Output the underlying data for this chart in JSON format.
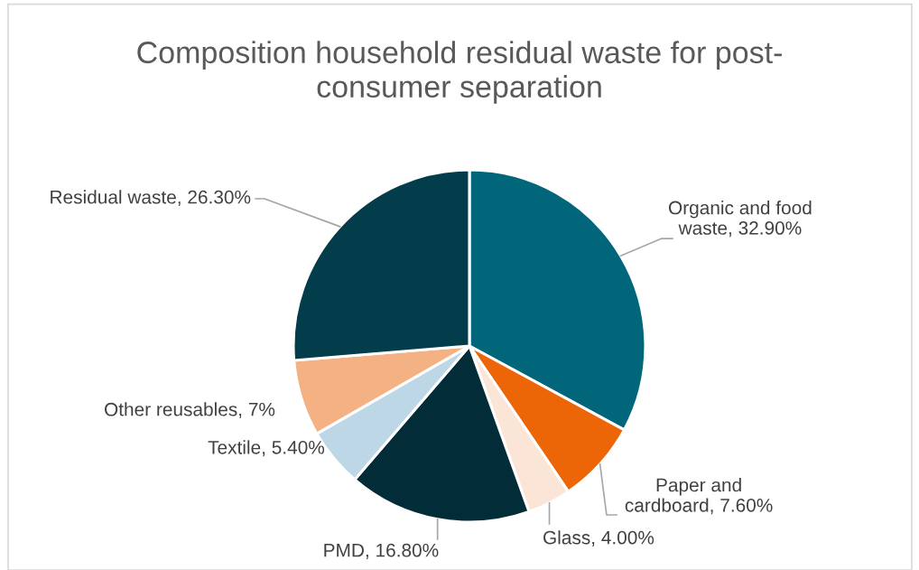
{
  "chart_data": {
    "type": "pie",
    "title": "Composition household residual waste for post-consumer separation",
    "categories": [
      "Organic and food waste",
      "Paper and cardboard",
      "Glass",
      "PMD",
      "Textile",
      "Other reusables",
      "Residual waste"
    ],
    "values": [
      32.9,
      7.6,
      4.0,
      16.8,
      5.4,
      7,
      26.3
    ],
    "value_labels": [
      "32.90%",
      "7.60%",
      "4.00%",
      "16.80%",
      "5.40%",
      "7%",
      "26.30%"
    ],
    "colors": [
      "#01667a",
      "#ec6608",
      "#fbe5d6",
      "#022c37",
      "#bdd7e7",
      "#f4b183",
      "#033c4a"
    ]
  }
}
